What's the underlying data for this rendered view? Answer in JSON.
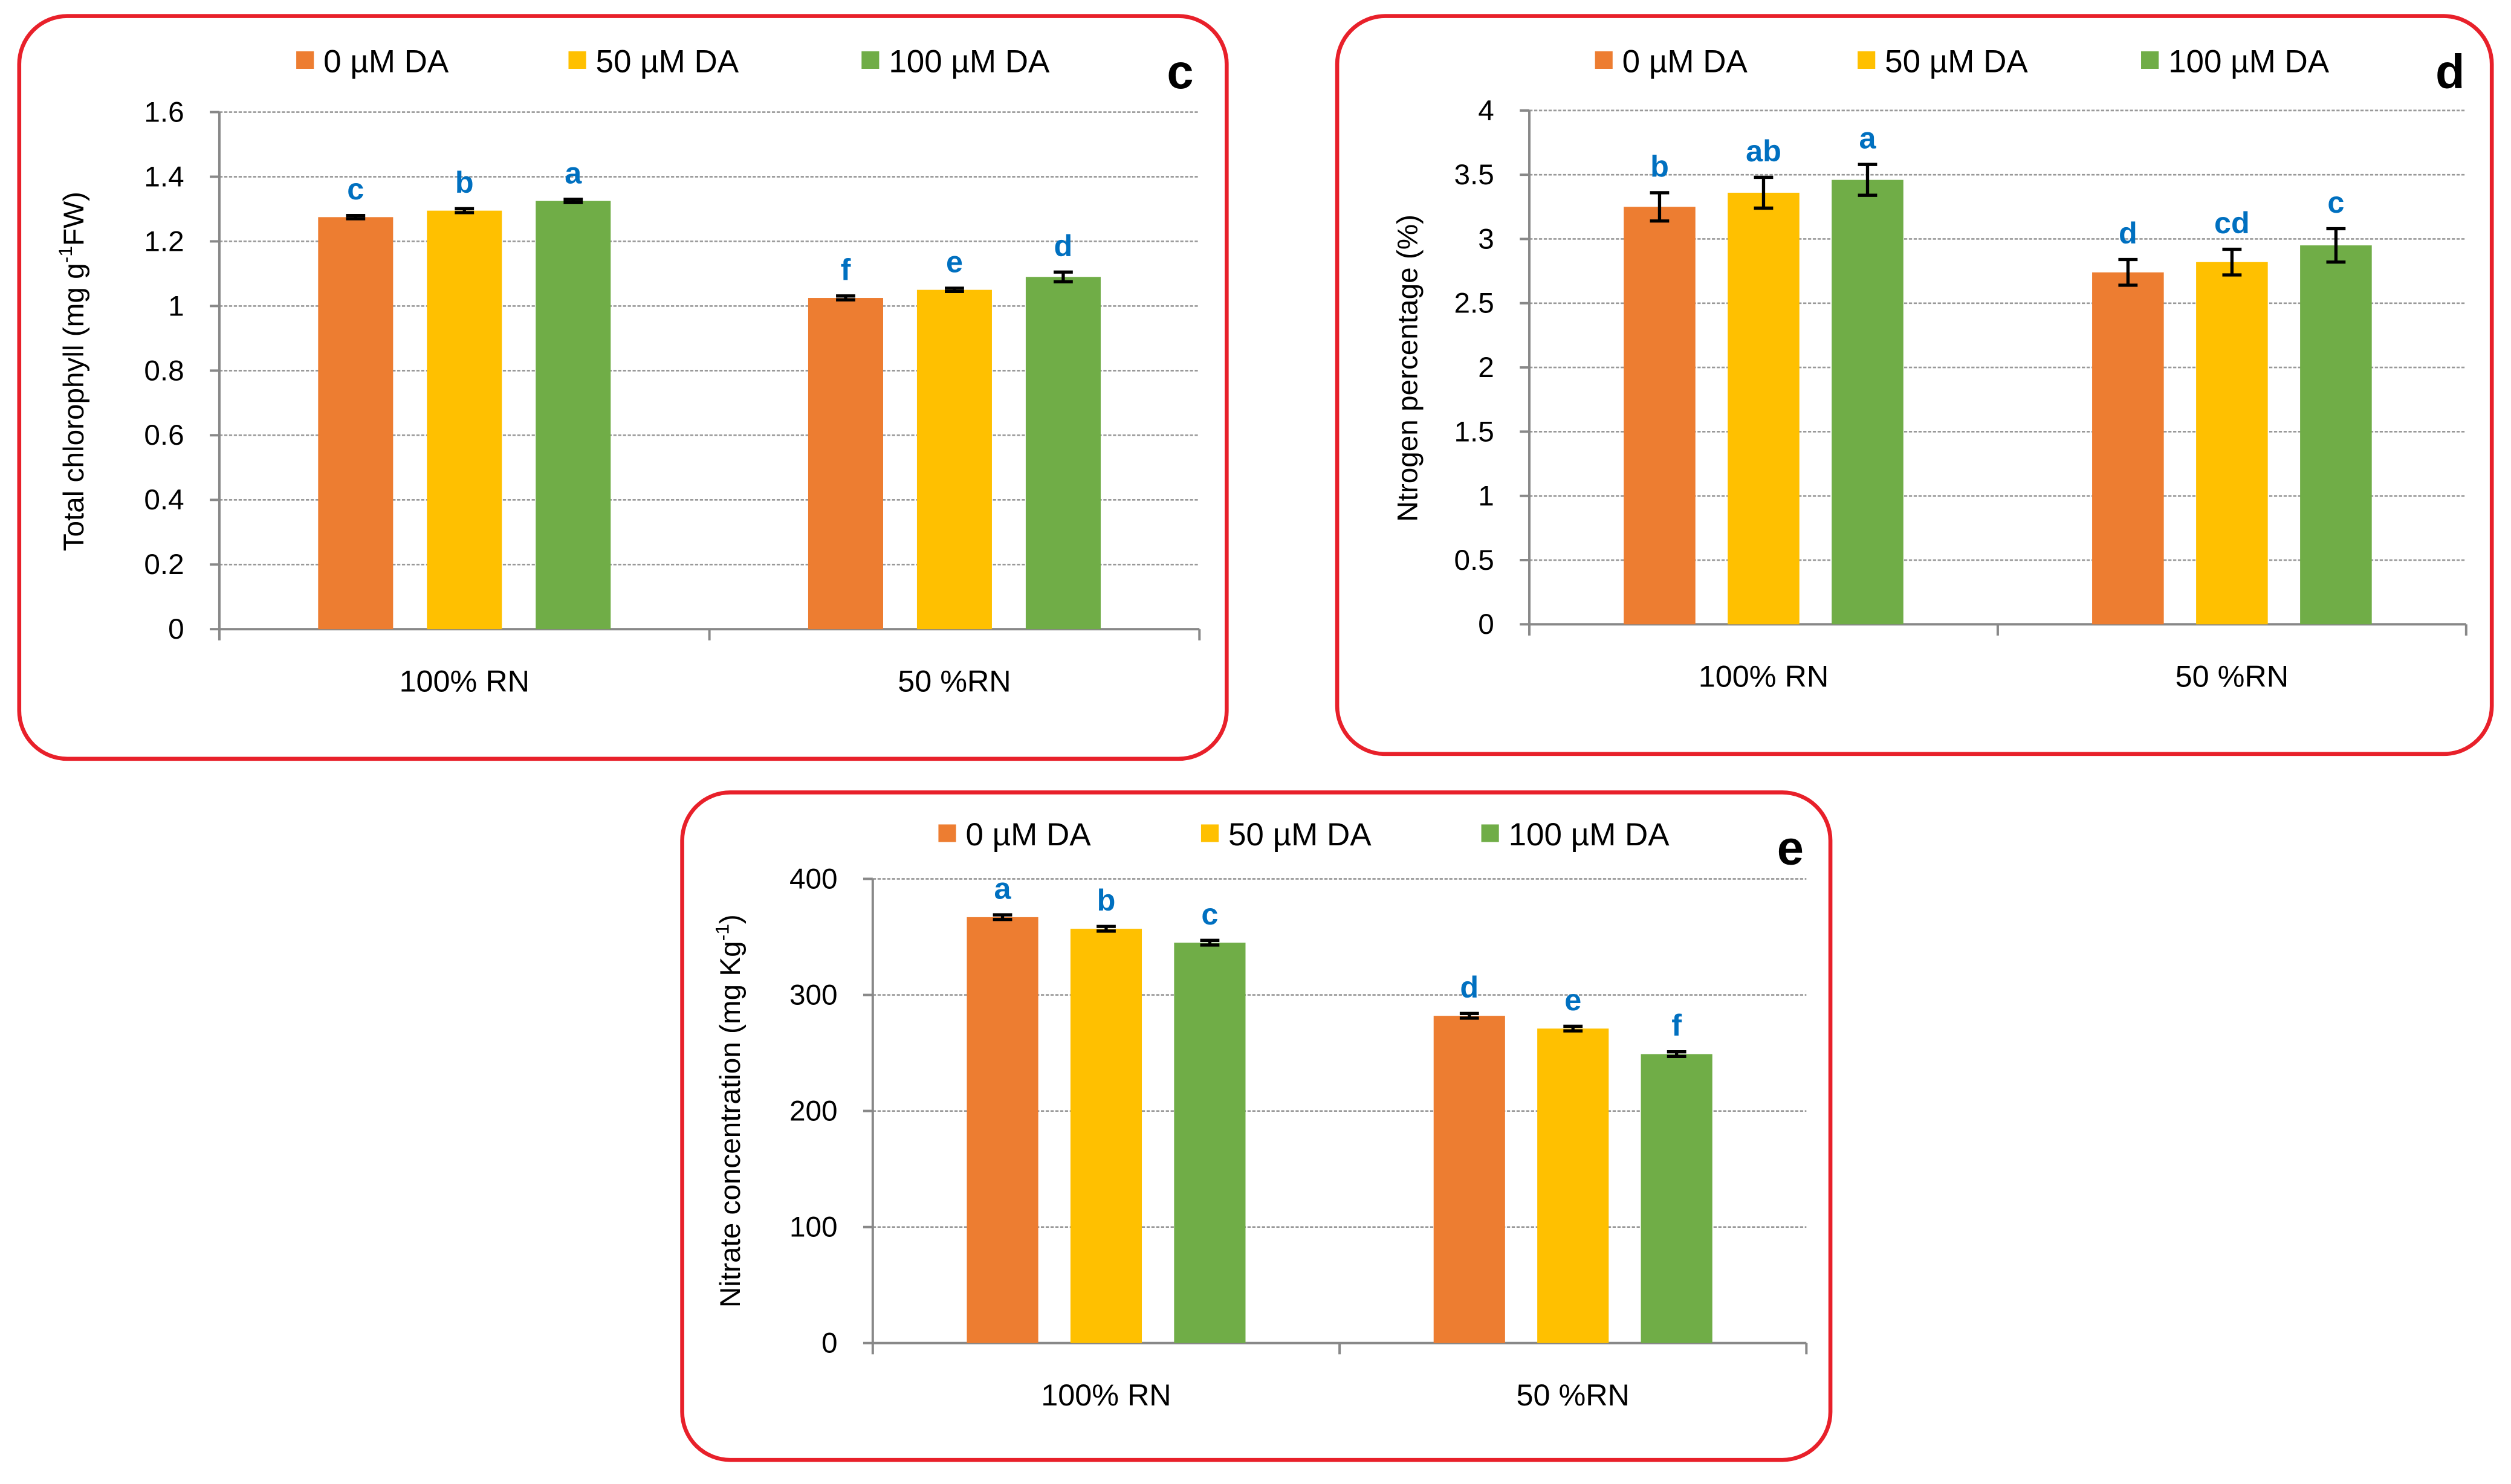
{
  "colors": {
    "series": [
      "#ed7d31",
      "#ffc000",
      "#70ad47"
    ],
    "frame": "#e8202a",
    "sig": "#0070c0"
  },
  "chart_data": [
    {
      "type": "bar",
      "panel_label": "c",
      "title": "",
      "xlabel": "",
      "ylabel": "Total chlorophyll (mg g-1FW)",
      "ylabel_parts": [
        "Total chlorophyll (mg g",
        "-1",
        "FW)"
      ],
      "categories": [
        "100% RN",
        "50 %RN"
      ],
      "ylim": [
        0,
        1.6
      ],
      "yticks": [
        "0",
        "0.2",
        "0.4",
        "0.6",
        "0.8",
        "1",
        "1.2",
        "1.4",
        "1.6"
      ],
      "grid": true,
      "legend": "top",
      "series": [
        {
          "name": "0 µM DA",
          "values": [
            1.275,
            1.025
          ],
          "errors": [
            0.005,
            0.006
          ],
          "letters": [
            "c",
            "f"
          ]
        },
        {
          "name": "50 µM DA",
          "values": [
            1.295,
            1.05
          ],
          "errors": [
            0.006,
            0.005
          ],
          "letters": [
            "b",
            "e"
          ]
        },
        {
          "name": "100 µM DA",
          "values": [
            1.325,
            1.09
          ],
          "errors": [
            0.005,
            0.015
          ],
          "letters": [
            "a",
            "d"
          ]
        }
      ]
    },
    {
      "type": "bar",
      "panel_label": "d",
      "title": "",
      "xlabel": "",
      "ylabel": "Ntrogen percentage (%)",
      "ylabel_parts": [
        "Ntrogen percentage (%)",
        "",
        ""
      ],
      "categories": [
        "100% RN",
        "50 %RN"
      ],
      "ylim": [
        0,
        4
      ],
      "yticks": [
        "0",
        "0.5",
        "1",
        "1.5",
        "2",
        "2.5",
        "3",
        "3.5",
        "4"
      ],
      "grid": true,
      "legend": "top",
      "series": [
        {
          "name": "0 µM DA",
          "values": [
            3.25,
            2.74
          ],
          "errors": [
            0.11,
            0.1
          ],
          "letters": [
            "b",
            "d"
          ]
        },
        {
          "name": "50 µM DA",
          "values": [
            3.36,
            2.82
          ],
          "errors": [
            0.12,
            0.1
          ],
          "letters": [
            "ab",
            "cd"
          ]
        },
        {
          "name": "100 µM DA",
          "values": [
            3.46,
            2.95
          ],
          "errors": [
            0.12,
            0.13
          ],
          "letters": [
            "a",
            "c"
          ]
        }
      ]
    },
    {
      "type": "bar",
      "panel_label": "e",
      "title": "",
      "xlabel": "",
      "ylabel": "Nitrate concentration (mg Kg-1)",
      "ylabel_parts": [
        "Nitrate concentration (mg Kg",
        "-1",
        ")"
      ],
      "categories": [
        "100% RN",
        "50 %RN"
      ],
      "ylim": [
        0,
        400
      ],
      "yticks": [
        "0",
        "100",
        "200",
        "300",
        "400"
      ],
      "grid": true,
      "legend": "top",
      "series": [
        {
          "name": "0 µM DA",
          "values": [
            367,
            282
          ],
          "errors": [
            2,
            2
          ],
          "letters": [
            "a",
            "d"
          ]
        },
        {
          "name": "50 µM DA",
          "values": [
            357,
            271
          ],
          "errors": [
            2,
            2
          ],
          "letters": [
            "b",
            "e"
          ]
        },
        {
          "name": "100 µM DA",
          "values": [
            345,
            249
          ],
          "errors": [
            2,
            2
          ],
          "letters": [
            "c",
            "f"
          ]
        }
      ]
    }
  ]
}
